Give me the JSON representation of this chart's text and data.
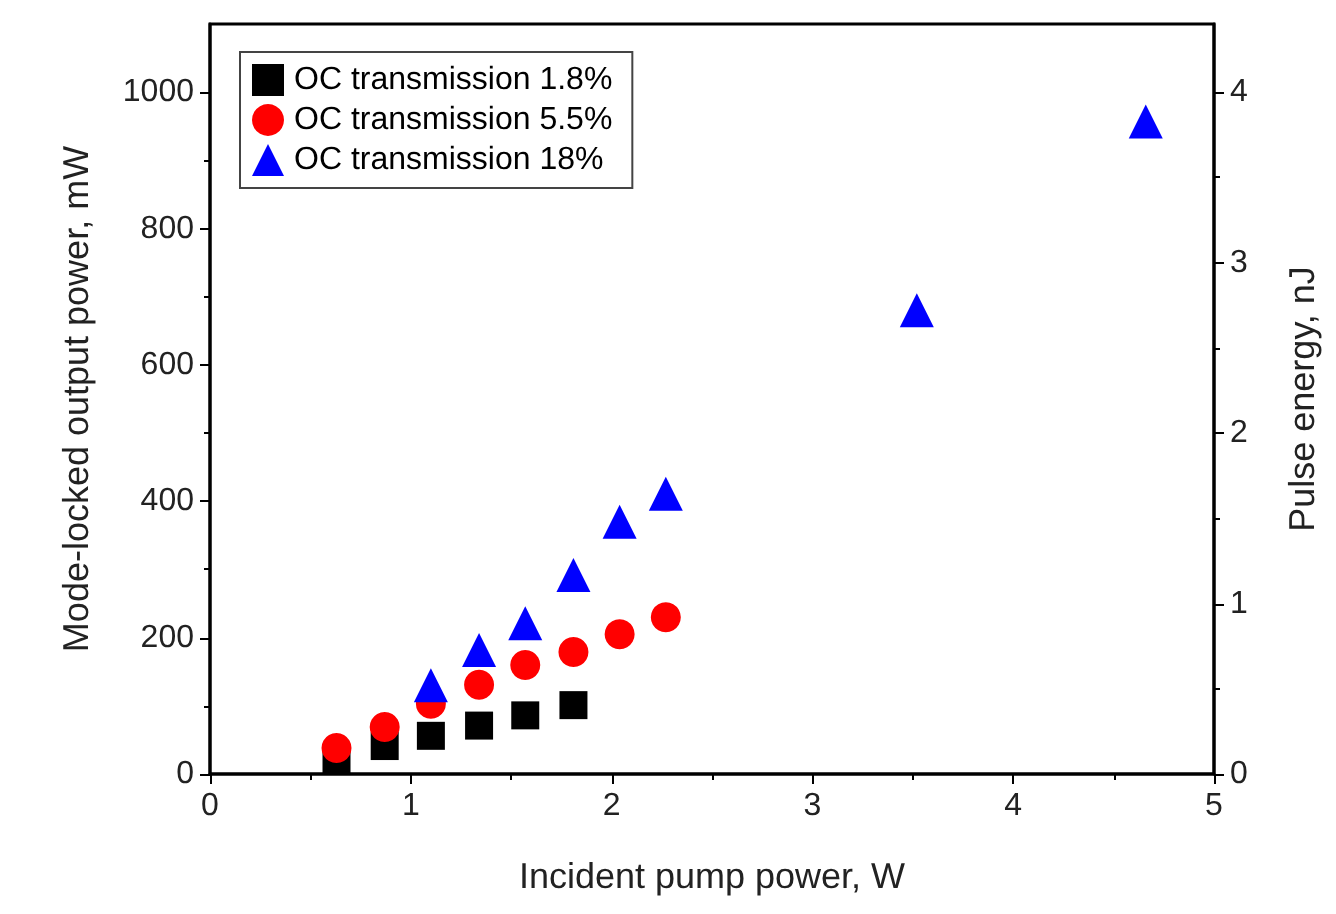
{
  "chart_data": {
    "type": "scatter",
    "xlabel": "Incident pump power, W",
    "ylabel": "Mode-locked output power, mW",
    "y2label": "Pulse energy, nJ",
    "xlim": [
      0,
      5
    ],
    "xticks": [
      0,
      1,
      2,
      3,
      4,
      5
    ],
    "ylim": [
      0,
      1100
    ],
    "yticks": [
      0,
      200,
      400,
      600,
      800,
      1000
    ],
    "y2lim": [
      0,
      4.4
    ],
    "y2ticks": [
      0,
      1,
      2,
      3,
      4
    ],
    "grid": false,
    "legend": "top left",
    "series": [
      {
        "name": "OC transmission 1.8%",
        "color": "#000000",
        "marker": "square",
        "x": [
          0.63,
          0.87,
          1.1,
          1.34,
          1.57,
          1.81
        ],
        "values": [
          20,
          41,
          56,
          71,
          86,
          101
        ]
      },
      {
        "name": "OC transmission 5.5%",
        "color": "#ff0000",
        "marker": "circle",
        "x": [
          0.63,
          0.87,
          1.1,
          1.34,
          1.57,
          1.81,
          2.04,
          2.27
        ],
        "values": [
          38,
          69,
          103,
          131,
          160,
          179,
          205,
          230
        ]
      },
      {
        "name": "OC transmission 18%",
        "color": "#0000ff",
        "marker": "triangle",
        "x": [
          1.1,
          1.34,
          1.57,
          1.81,
          2.04,
          2.27,
          3.52,
          4.66
        ],
        "values": [
          130,
          182,
          221,
          292,
          370,
          411,
          680,
          957
        ]
      }
    ]
  }
}
